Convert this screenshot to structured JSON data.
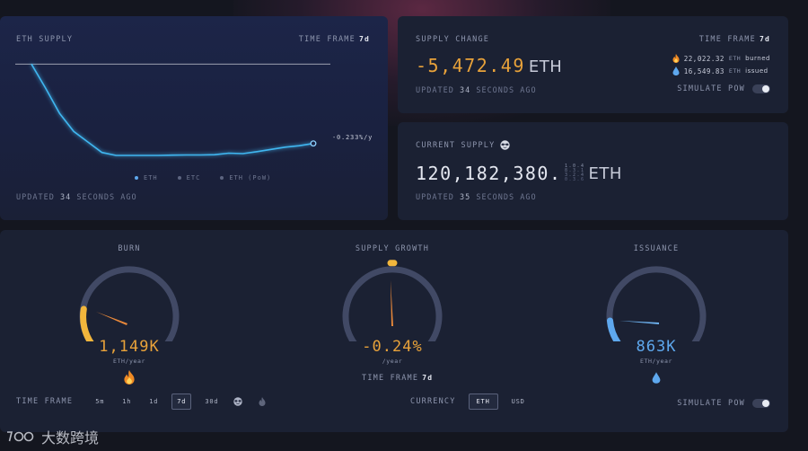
{
  "eth_supply_card": {
    "title": "ETH SUPPLY",
    "timeframe_label": "TIME FRAME",
    "timeframe_value": "7d",
    "end_label": "-0.233%/y",
    "legend": [
      "ETH",
      "ETC",
      "ETH (PoW)"
    ],
    "updated_prefix": "UPDATED",
    "updated_value": "34",
    "updated_suffix": "SECONDS AGO"
  },
  "chart_data": {
    "type": "line",
    "title": "ETH SUPPLY",
    "series": [
      {
        "name": "ETH",
        "x": [
          0,
          0.05,
          0.1,
          0.15,
          0.2,
          0.25,
          0.3,
          0.35,
          0.4,
          0.45,
          0.5,
          0.55,
          0.6,
          0.65,
          0.7,
          0.75,
          0.8,
          0.85,
          0.9,
          0.95,
          1.0
        ],
        "values": [
          100,
          84,
          67,
          55,
          48,
          41,
          39,
          39,
          39,
          39,
          39.2,
          39.3,
          39.3,
          39.5,
          40.5,
          40.2,
          41.5,
          43,
          44.5,
          45.5,
          47
        ],
        "color": "#3fb6f0"
      }
    ],
    "reference_line": 100,
    "ylim": [
      30,
      102
    ],
    "legend_position": "bottom-center"
  },
  "supply_change_card": {
    "title": "SUPPLY CHANGE",
    "timeframe_label": "TIME FRAME",
    "timeframe_value": "7d",
    "value": "-5,472.49",
    "unit": "ETH",
    "burned_value": "22,022.32",
    "burned_unit": "ETH",
    "burned_label": "burned",
    "issued_value": "16,549.83",
    "issued_unit": "ETH",
    "issued_label": "issued",
    "updated_prefix": "UPDATED",
    "updated_value": "34",
    "updated_suffix": "SECONDS AGO",
    "simulate_label": "SIMULATE PoW"
  },
  "current_supply_card": {
    "title": "CURRENT SUPPLY",
    "value": "120,182,380.",
    "unit": "ETH",
    "updated_prefix": "UPDATED",
    "updated_value": "35",
    "updated_suffix": "SECONDS AGO"
  },
  "gauges": {
    "burn": {
      "title": "BURN",
      "value": "1,149K",
      "unit": "ETH/year",
      "color": "#e8a23a"
    },
    "growth": {
      "title": "SUPPLY GROWTH",
      "value": "-0.24%",
      "unit": "/year",
      "color": "#e8a23a",
      "timeframe_label": "TIME FRAME",
      "timeframe_value": "7d"
    },
    "issuance": {
      "title": "ISSUANCE",
      "value": "863K",
      "unit": "ETH/year",
      "color": "#5ea8ee"
    }
  },
  "bottom_controls": {
    "timeframe_label": "TIME FRAME",
    "timeframes": [
      "5m",
      "1h",
      "1d",
      "7d",
      "30d"
    ],
    "active_timeframe": "7d",
    "currency_label": "CURRENCY",
    "currencies": [
      "ETH",
      "USD"
    ],
    "active_currency": "ETH",
    "simulate_label": "SIMULATE PoW"
  },
  "watermark": {
    "text": "大数跨境"
  }
}
